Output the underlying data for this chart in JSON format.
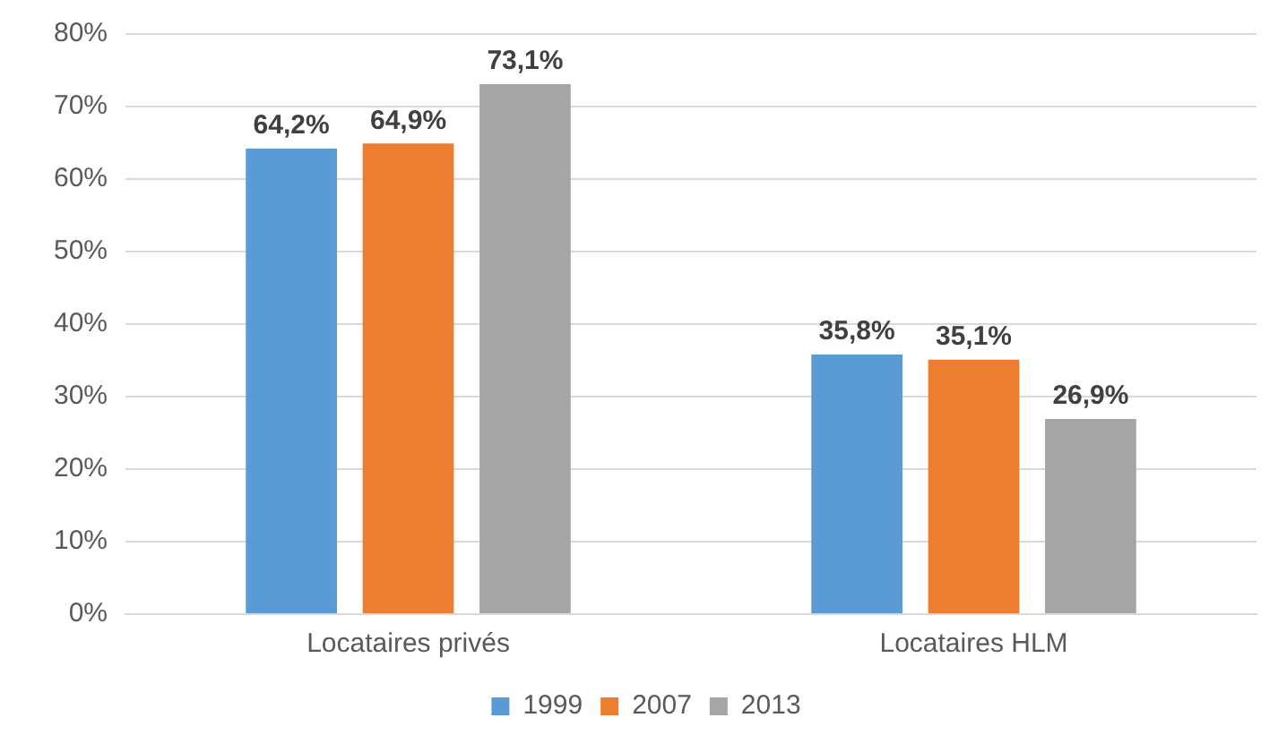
{
  "chart_data": {
    "type": "bar",
    "categories": [
      "Locataires privés",
      "Locataires HLM"
    ],
    "series": [
      {
        "name": "1999",
        "color": "#5b9bd5",
        "values": [
          64.2,
          35.8
        ],
        "value_labels": [
          "64,2%",
          "35,8%"
        ]
      },
      {
        "name": "2007",
        "color": "#ed7d31",
        "values": [
          64.9,
          35.1
        ],
        "value_labels": [
          "64,9%",
          "35,1%"
        ]
      },
      {
        "name": "2013",
        "color": "#a5a5a5",
        "values": [
          73.1,
          26.9
        ],
        "value_labels": [
          "73,1%",
          "26,9%"
        ]
      }
    ],
    "ylim": [
      0,
      80
    ],
    "yticks": [
      {
        "value": 0,
        "label": "0%"
      },
      {
        "value": 10,
        "label": "10%"
      },
      {
        "value": 20,
        "label": "20%"
      },
      {
        "value": 30,
        "label": "30%"
      },
      {
        "value": 40,
        "label": "40%"
      },
      {
        "value": 50,
        "label": "50%"
      },
      {
        "value": 60,
        "label": "60%"
      },
      {
        "value": 70,
        "label": "70%"
      },
      {
        "value": 80,
        "label": "80%"
      }
    ],
    "grid": "y",
    "legend": "bottom"
  }
}
